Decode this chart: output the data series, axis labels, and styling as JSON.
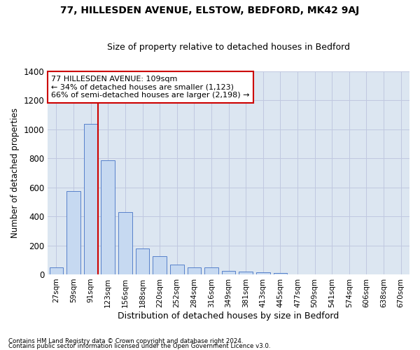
{
  "title_line1": "77, HILLESDEN AVENUE, ELSTOW, BEDFORD, MK42 9AJ",
  "title_line2": "Size of property relative to detached houses in Bedford",
  "xlabel": "Distribution of detached houses by size in Bedford",
  "ylabel": "Number of detached properties",
  "footnote1": "Contains HM Land Registry data © Crown copyright and database right 2024.",
  "footnote2": "Contains public sector information licensed under the Open Government Licence v3.0.",
  "annotation_line1": "77 HILLESDEN AVENUE: 109sqm",
  "annotation_line2": "← 34% of detached houses are smaller (1,123)",
  "annotation_line3": "66% of semi-detached houses are larger (2,198) →",
  "bar_values": [
    50,
    575,
    1040,
    785,
    430,
    180,
    125,
    65,
    50,
    50,
    25,
    20,
    15,
    8,
    0,
    0,
    0,
    0,
    0,
    0,
    0
  ],
  "categories": [
    "27sqm",
    "59sqm",
    "91sqm",
    "123sqm",
    "156sqm",
    "188sqm",
    "220sqm",
    "252sqm",
    "284sqm",
    "316sqm",
    "349sqm",
    "381sqm",
    "413sqm",
    "445sqm",
    "477sqm",
    "509sqm",
    "541sqm",
    "574sqm",
    "606sqm",
    "638sqm",
    "670sqm"
  ],
  "bar_color": "#c6d9f1",
  "bar_edge_color": "#4472c4",
  "vline_color": "#cc0000",
  "vline_x_index": 2,
  "ylim": [
    0,
    1400
  ],
  "yticks": [
    0,
    200,
    400,
    600,
    800,
    1000,
    1200,
    1400
  ],
  "grid_color": "#c0c8e0",
  "bg_color": "#dce6f1",
  "annotation_box_facecolor": "#ffffff",
  "annotation_box_edgecolor": "#cc0000"
}
